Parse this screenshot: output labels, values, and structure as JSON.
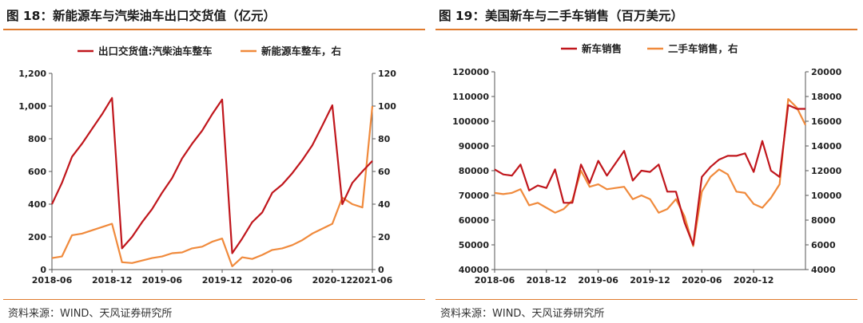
{
  "left": {
    "title": "图 18：新能源车与汽柴油车出口交货值（亿元）",
    "source": "资料来源：WIND、天风证券研究所",
    "chart_data": {
      "type": "line",
      "title": "图 18：新能源车与汽柴油车出口交货值（亿元）",
      "x": [
        "2018-06",
        "2018-07",
        "2018-08",
        "2018-09",
        "2018-10",
        "2018-11",
        "2018-12",
        "2019-02",
        "2019-03",
        "2019-04",
        "2019-05",
        "2019-06",
        "2019-07",
        "2019-08",
        "2019-09",
        "2019-10",
        "2019-11",
        "2019-12",
        "2020-02",
        "2020-03",
        "2020-04",
        "2020-05",
        "2020-06",
        "2020-07",
        "2020-08",
        "2020-09",
        "2020-10",
        "2020-11",
        "2020-12",
        "2021-03",
        "2021-04",
        "2021-05",
        "2021-06"
      ],
      "x_ticks": [
        "2018-06",
        "2018-12",
        "2019-06",
        "2019-12",
        "2020-06",
        "2020-12",
        "2021-06"
      ],
      "series": [
        {
          "name": "出口交货值:汽柴油车整车",
          "axis": "left",
          "color": "#c0161c",
          "values": [
            400,
            530,
            690,
            770,
            860,
            950,
            1050,
            130,
            200,
            290,
            370,
            470,
            560,
            680,
            770,
            850,
            950,
            1040,
            100,
            190,
            290,
            350,
            470,
            520,
            590,
            670,
            760,
            880,
            1005,
            400,
            530,
            600,
            665
          ]
        },
        {
          "name": "新能源车整车，右",
          "axis": "right",
          "color": "#f08a3c",
          "values": [
            7,
            8,
            21,
            22,
            24,
            26,
            28,
            4.5,
            4,
            5.5,
            7,
            8,
            10,
            10.5,
            13,
            14,
            17,
            19,
            2,
            7.5,
            6.5,
            9,
            12,
            13,
            15,
            18,
            22,
            25,
            28,
            44,
            40,
            38,
            100
          ]
        }
      ],
      "legend": [
        "出口交货值:汽柴油车整车",
        "新能源车整车，右"
      ],
      "ylim": [
        0,
        1200
      ],
      "y_ticks": [
        "0",
        "200",
        "400",
        "600",
        "800",
        "1,000",
        "1,200"
      ],
      "y2lim": [
        0,
        120
      ],
      "y2_ticks": [
        "0",
        "20",
        "40",
        "60",
        "80",
        "100",
        "120"
      ]
    }
  },
  "right": {
    "title": "图 19：美国新车与二手车销售（百万美元）",
    "source": "资料来源：WIND、天风证券研究所",
    "chart_data": {
      "type": "line",
      "title": "图 19：美国新车与二手车销售（百万美元）",
      "x": [
        "2018-06",
        "2018-07",
        "2018-08",
        "2018-09",
        "2018-10",
        "2018-11",
        "2018-12",
        "2019-01",
        "2019-02",
        "2019-03",
        "2019-04",
        "2019-05",
        "2019-06",
        "2019-07",
        "2019-08",
        "2019-09",
        "2019-10",
        "2019-11",
        "2019-12",
        "2020-01",
        "2020-02",
        "2020-03",
        "2020-04",
        "2020-05",
        "2020-06",
        "2020-07",
        "2020-08",
        "2020-09",
        "2020-10",
        "2020-11",
        "2020-12",
        "2021-01",
        "2021-02",
        "2021-03",
        "2021-04",
        "2021-05",
        "2021-06"
      ],
      "x_ticks": [
        "2018-06",
        "2018-12",
        "2019-06",
        "2019-12",
        "2020-06",
        "2020-12"
      ],
      "series": [
        {
          "name": "新车销售",
          "axis": "left",
          "color": "#c0161c",
          "values": [
            80500,
            78500,
            78000,
            82500,
            72000,
            74000,
            73000,
            80500,
            67000,
            67000,
            82500,
            75000,
            84000,
            78000,
            83000,
            88000,
            76000,
            80000,
            79500,
            82500,
            71500,
            71500,
            59000,
            50000,
            77500,
            81500,
            84500,
            86000,
            86000,
            87000,
            79500,
            92000,
            80000,
            77500,
            106500,
            105000,
            105000
          ]
        },
        {
          "name": "二手车销售，右",
          "axis": "right",
          "color": "#f08a3c",
          "values": [
            10200,
            10100,
            10200,
            10500,
            9200,
            9400,
            9000,
            8600,
            8900,
            9600,
            12000,
            10700,
            10900,
            10500,
            10600,
            10700,
            9700,
            10000,
            9700,
            8600,
            8900,
            9700,
            8300,
            5900,
            10300,
            11500,
            12100,
            11700,
            10300,
            10200,
            9300,
            9000,
            9800,
            10900,
            17800,
            17100,
            15700
          ]
        }
      ],
      "legend": [
        "新车销售",
        "二手车销售，右"
      ],
      "ylim": [
        40000,
        120000
      ],
      "y_ticks": [
        "40000",
        "50000",
        "60000",
        "70000",
        "80000",
        "90000",
        "100000",
        "110000",
        "120000"
      ],
      "y2lim": [
        4000,
        20000
      ],
      "y2_ticks": [
        "4000",
        "6000",
        "8000",
        "10000",
        "12000",
        "14000",
        "16000",
        "18000",
        "20000"
      ]
    }
  }
}
